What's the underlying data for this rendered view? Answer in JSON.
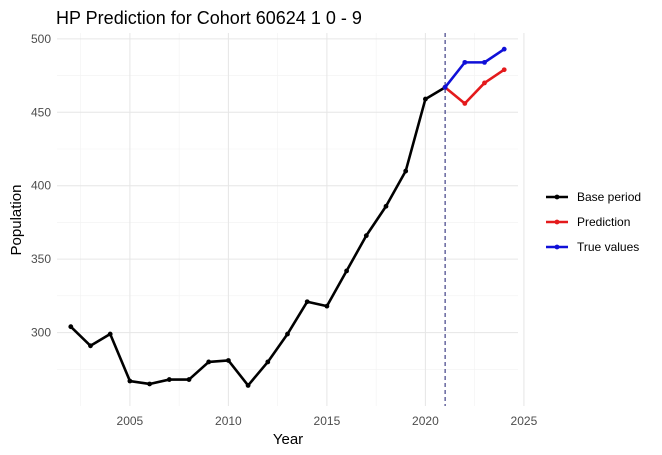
{
  "chart_data": {
    "type": "line",
    "title": "HP Prediction for Cohort 60624 1 0 - 9",
    "xlabel": "Year",
    "ylabel": "Population",
    "xlim": [
      2001.3,
      2024.7
    ],
    "ylim": [
      250,
      504
    ],
    "x_ticks": [
      2005,
      2010,
      2015,
      2020,
      2025
    ],
    "y_ticks": [
      300,
      350,
      400,
      450,
      500
    ],
    "x_minor": [
      2002.5,
      2007.5,
      2012.5,
      2017.5,
      2022.5
    ],
    "y_minor": [
      275,
      325,
      375,
      425,
      475
    ],
    "grid": true,
    "legend_position": "right",
    "cutoff_year": 2021,
    "series": [
      {
        "name": "Base period",
        "color": "#000000",
        "x": [
          2002,
          2003,
          2004,
          2005,
          2006,
          2007,
          2008,
          2009,
          2010,
          2011,
          2012,
          2013,
          2014,
          2015,
          2016,
          2017,
          2018,
          2019,
          2020,
          2021
        ],
        "values": [
          304,
          291,
          299,
          267,
          265,
          268,
          268,
          280,
          281,
          264,
          280,
          299,
          321,
          318,
          342,
          366,
          386,
          410,
          459,
          467
        ]
      },
      {
        "name": "Prediction",
        "color": "#e41a1c",
        "x": [
          2021,
          2022,
          2023,
          2024
        ],
        "values": [
          467,
          456,
          470,
          479
        ]
      },
      {
        "name": "True values",
        "color": "#1010d8",
        "x": [
          2021,
          2022,
          2023,
          2024
        ],
        "values": [
          467,
          484,
          484,
          493
        ]
      }
    ]
  }
}
